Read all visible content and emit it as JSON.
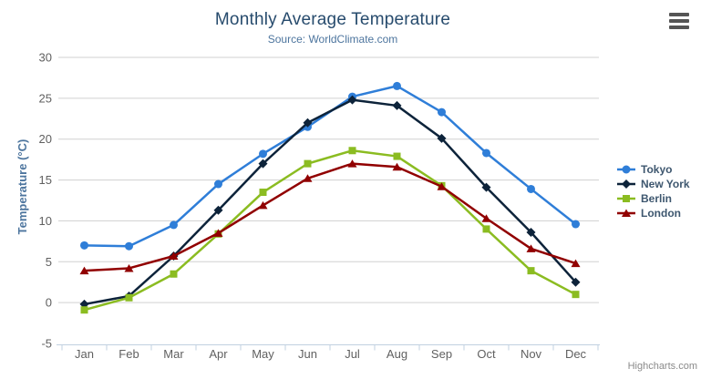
{
  "chart_data": {
    "type": "line",
    "title": "Monthly Average Temperature",
    "subtitle": "Source: WorldClimate.com",
    "categories": [
      "Jan",
      "Feb",
      "Mar",
      "Apr",
      "May",
      "Jun",
      "Jul",
      "Aug",
      "Sep",
      "Oct",
      "Nov",
      "Dec"
    ],
    "xlabel": "",
    "ylabel": "Temperature (°C)",
    "ylim": [
      -5,
      30
    ],
    "yticks": [
      30,
      25,
      20,
      15,
      10,
      5,
      0,
      -5
    ],
    "grid": true,
    "legend_position": "right",
    "series": [
      {
        "name": "Tokyo",
        "color": "#2f7ed8",
        "marker": "circle",
        "values": [
          7.0,
          6.9,
          9.5,
          14.5,
          18.2,
          21.5,
          25.2,
          26.5,
          23.3,
          18.3,
          13.9,
          9.6
        ]
      },
      {
        "name": "New York",
        "color": "#0d233a",
        "marker": "diamond",
        "values": [
          -0.2,
          0.8,
          5.7,
          11.3,
          17.0,
          22.0,
          24.8,
          24.1,
          20.1,
          14.1,
          8.6,
          2.5
        ]
      },
      {
        "name": "Berlin",
        "color": "#8bbc21",
        "marker": "square",
        "values": [
          -0.9,
          0.6,
          3.5,
          8.4,
          13.5,
          17.0,
          18.6,
          17.9,
          14.3,
          9.0,
          3.9,
          1.0
        ]
      },
      {
        "name": "London",
        "color": "#910000",
        "marker": "triangle-up",
        "values": [
          3.9,
          4.2,
          5.7,
          8.5,
          11.9,
          15.2,
          17.0,
          16.6,
          14.2,
          10.3,
          6.6,
          4.8
        ]
      }
    ]
  },
  "credits": {
    "label": "Highcharts.com"
  },
  "colors": {
    "grid": "#d0d0d0",
    "axis_line": "#c0d0e0",
    "tick_label": "#606060",
    "title": "#274b6d",
    "subtitle": "#4d759e",
    "axis_title": "#4d759e",
    "legend_text": "#3e576f",
    "credits": "#8a8a8a"
  }
}
